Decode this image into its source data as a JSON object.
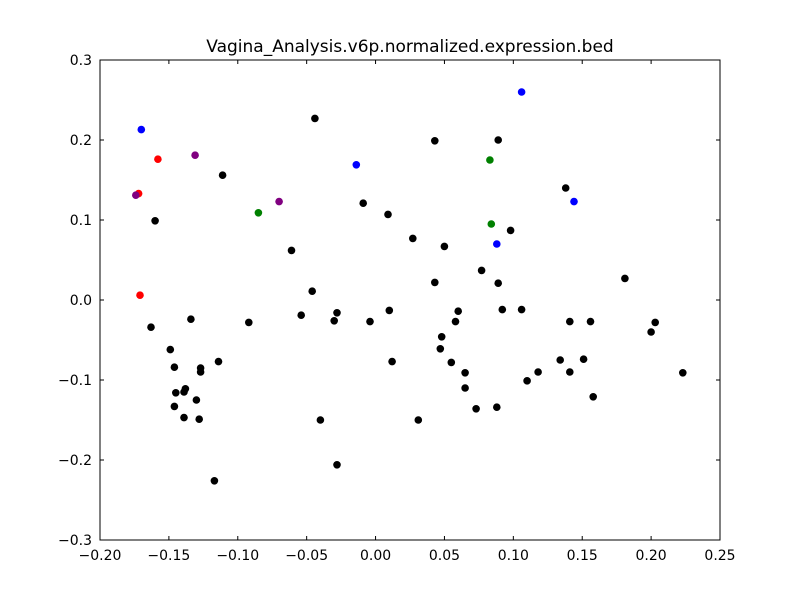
{
  "chart_data": {
    "type": "scatter",
    "title": "Vagina_Analysis.v6p.normalized.expression.bed",
    "xlabel": "",
    "ylabel": "",
    "xlim": [
      -0.2,
      0.25
    ],
    "ylim": [
      -0.3,
      0.3
    ],
    "x_ticks": [
      "−0.20",
      "−0.15",
      "−0.10",
      "−0.05",
      "0.00",
      "0.05",
      "0.10",
      "0.15",
      "0.20",
      "0.25"
    ],
    "x_tick_values": [
      -0.2,
      -0.15,
      -0.1,
      -0.05,
      0,
      0.05,
      0.1,
      0.15,
      0.2,
      0.25
    ],
    "y_ticks": [
      "−0.3",
      "−0.2",
      "−0.1",
      "0.0",
      "0.1",
      "0.2",
      "0.3"
    ],
    "y_tick_values": [
      -0.3,
      -0.2,
      -0.1,
      0,
      0.1,
      0.2,
      0.3
    ],
    "grid": false,
    "legend": "none",
    "series": [
      {
        "color": "#000000",
        "points": [
          [
            -0.044,
            0.227
          ],
          [
            -0.111,
            0.156
          ],
          [
            -0.16,
            0.099
          ],
          [
            -0.061,
            0.062
          ],
          [
            -0.046,
            0.011
          ],
          [
            -0.054,
            -0.019
          ],
          [
            -0.028,
            -0.016
          ],
          [
            -0.03,
            -0.026
          ],
          [
            -0.004,
            -0.027
          ],
          [
            0.01,
            -0.013
          ],
          [
            -0.009,
            0.121
          ],
          [
            0.009,
            0.107
          ],
          [
            0.027,
            0.077
          ],
          [
            0.05,
            0.067
          ],
          [
            0.043,
            0.199
          ],
          [
            0.089,
            0.2
          ],
          [
            0.098,
            0.087
          ],
          [
            0.077,
            0.037
          ],
          [
            0.089,
            0.021
          ],
          [
            0.043,
            0.022
          ],
          [
            0.092,
            -0.012
          ],
          [
            0.106,
            -0.012
          ],
          [
            0.06,
            -0.014
          ],
          [
            0.058,
            -0.027
          ],
          [
            0.048,
            -0.046
          ],
          [
            0.047,
            -0.061
          ],
          [
            0.055,
            -0.078
          ],
          [
            0.065,
            -0.091
          ],
          [
            0.065,
            -0.11
          ],
          [
            0.073,
            -0.136
          ],
          [
            0.088,
            -0.134
          ],
          [
            0.11,
            -0.101
          ],
          [
            0.118,
            -0.09
          ],
          [
            0.134,
            -0.075
          ],
          [
            0.141,
            -0.09
          ],
          [
            0.151,
            -0.074
          ],
          [
            0.158,
            -0.121
          ],
          [
            0.141,
            -0.027
          ],
          [
            0.156,
            -0.027
          ],
          [
            0.138,
            0.14
          ],
          [
            0.181,
            0.027
          ],
          [
            0.203,
            -0.028
          ],
          [
            0.2,
            -0.04
          ],
          [
            0.223,
            -0.091
          ],
          [
            -0.163,
            -0.034
          ],
          [
            -0.134,
            -0.024
          ],
          [
            -0.092,
            -0.028
          ],
          [
            -0.149,
            -0.062
          ],
          [
            -0.146,
            -0.084
          ],
          [
            -0.114,
            -0.077
          ],
          [
            -0.127,
            -0.085
          ],
          [
            -0.127,
            -0.09
          ],
          [
            -0.145,
            -0.116
          ],
          [
            -0.138,
            -0.111
          ],
          [
            -0.139,
            -0.115
          ],
          [
            -0.146,
            -0.133
          ],
          [
            -0.13,
            -0.125
          ],
          [
            -0.139,
            -0.147
          ],
          [
            -0.128,
            -0.149
          ],
          [
            -0.117,
            -0.226
          ],
          [
            -0.04,
            -0.15
          ],
          [
            -0.028,
            -0.206
          ],
          [
            0.012,
            -0.077
          ],
          [
            0.031,
            -0.15
          ]
        ]
      },
      {
        "color": "#0000ff",
        "points": [
          [
            -0.17,
            0.213
          ],
          [
            -0.014,
            0.169
          ],
          [
            0.106,
            0.26
          ],
          [
            0.144,
            0.123
          ],
          [
            0.088,
            0.07
          ]
        ]
      },
      {
        "color": "#ff0000",
        "points": [
          [
            -0.158,
            0.176
          ],
          [
            -0.172,
            0.133
          ],
          [
            -0.171,
            0.006
          ]
        ]
      },
      {
        "color": "#800080",
        "points": [
          [
            -0.131,
            0.181
          ],
          [
            -0.07,
            0.123
          ],
          [
            -0.174,
            0.131
          ]
        ]
      },
      {
        "color": "#008000",
        "points": [
          [
            -0.085,
            0.109
          ],
          [
            0.083,
            0.175
          ],
          [
            0.084,
            0.095
          ]
        ]
      }
    ]
  }
}
